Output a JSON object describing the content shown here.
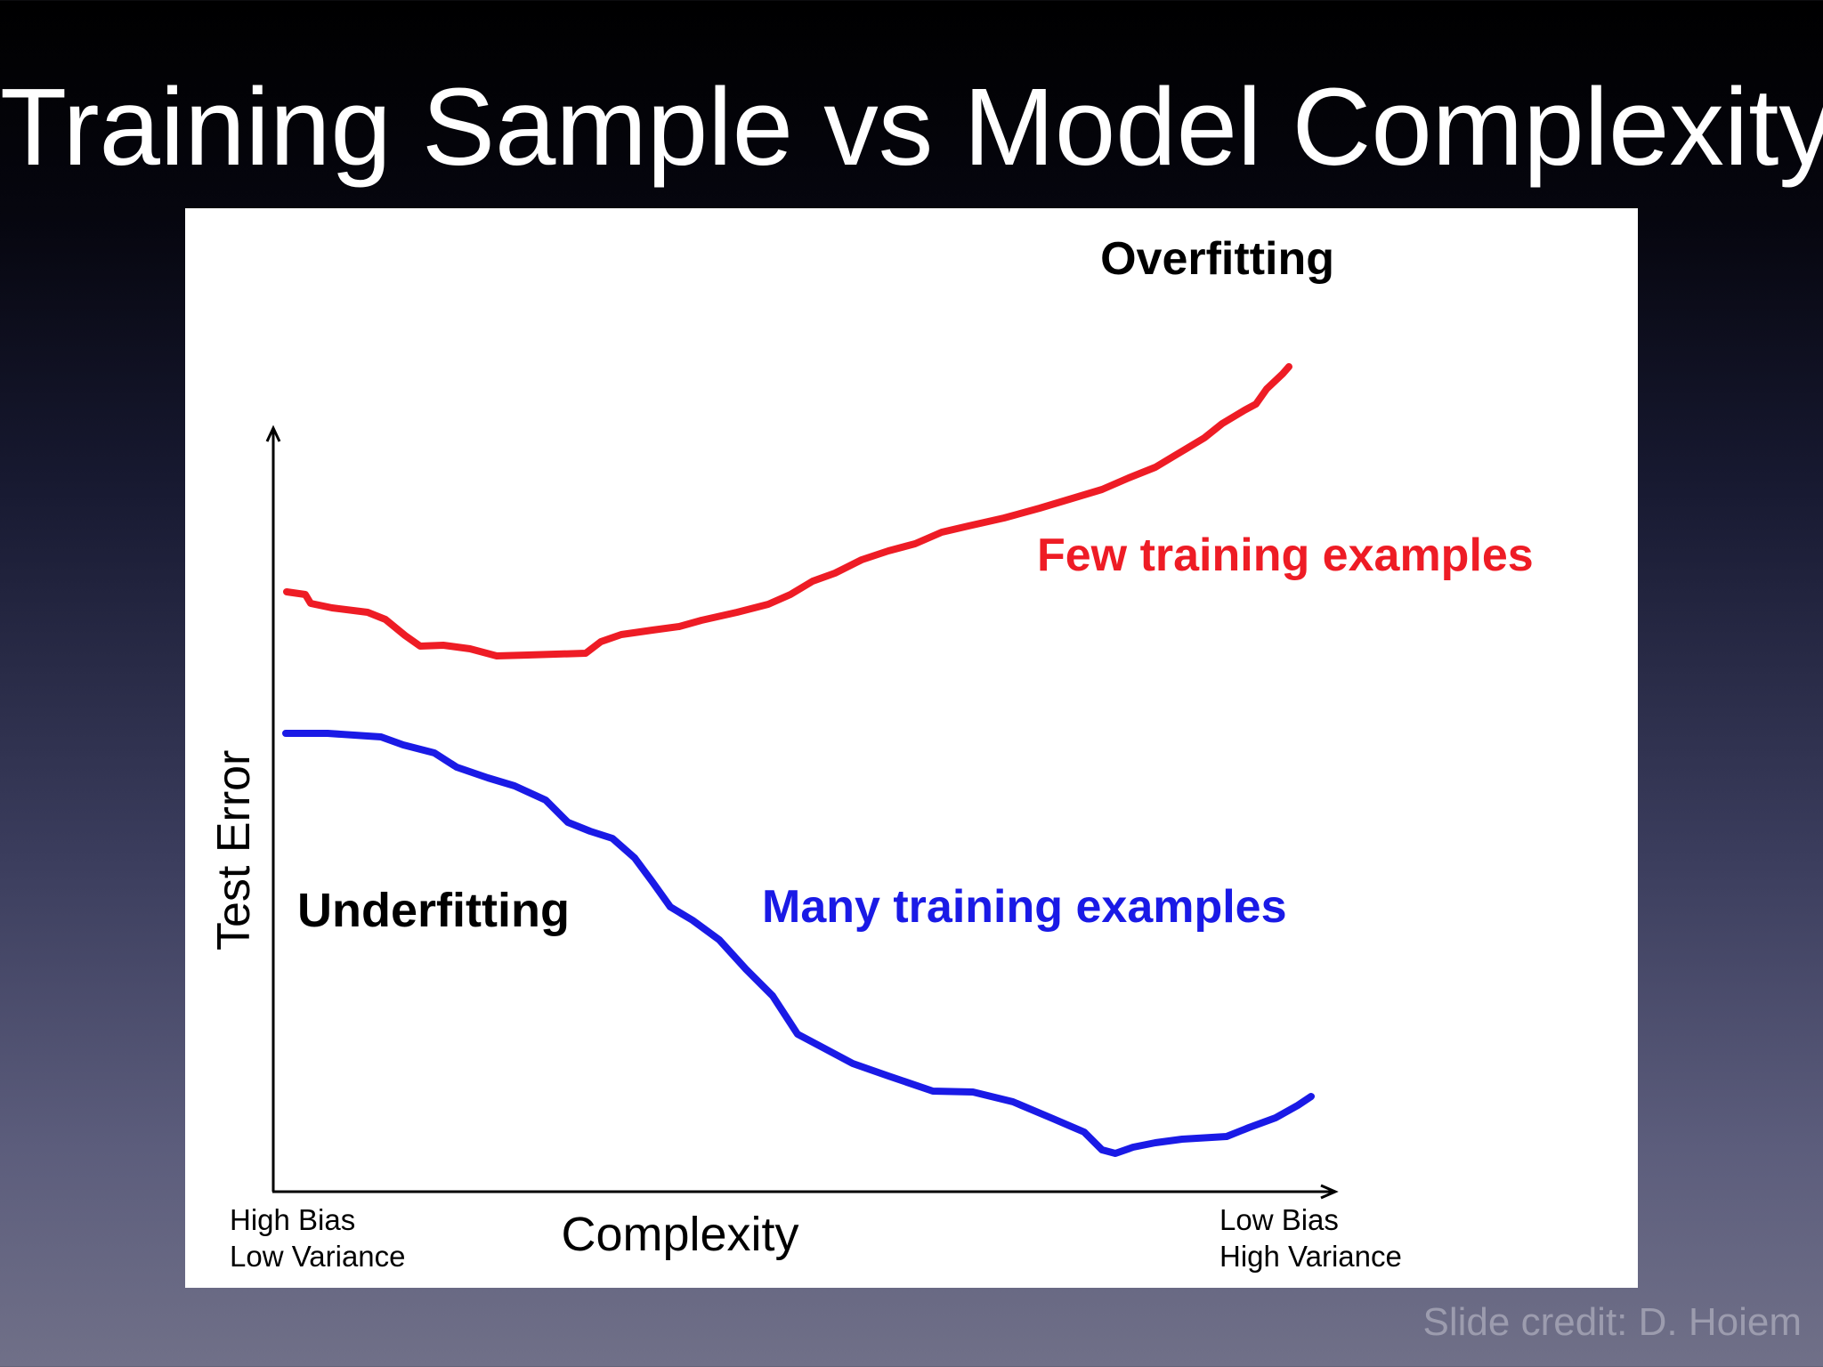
{
  "slide": {
    "title": "Training Sample vs Model Complexity",
    "credit": "Slide credit: D. Hoiem"
  },
  "figure": {
    "y_axis_label": "Test Error",
    "x_axis_label": "Complexity",
    "x_left_line1": "High Bias",
    "x_left_line2": "Low Variance",
    "x_right_line1": "Low Bias",
    "x_right_line2": "High Variance",
    "region_left": "Underfitting",
    "region_right": "Overfitting",
    "curves": [
      {
        "id": "few",
        "label": "Few training examples",
        "color": "#ee1c25",
        "shape": "shallow dip at low complexity, then rises steadily to its highest error at maximum complexity"
      },
      {
        "id": "many",
        "label": "Many training examples",
        "color": "#1a1ae6",
        "shape": "flat at first, falls steeply through middle complexity, reaches minimum at high complexity, then rises slightly"
      }
    ]
  }
}
